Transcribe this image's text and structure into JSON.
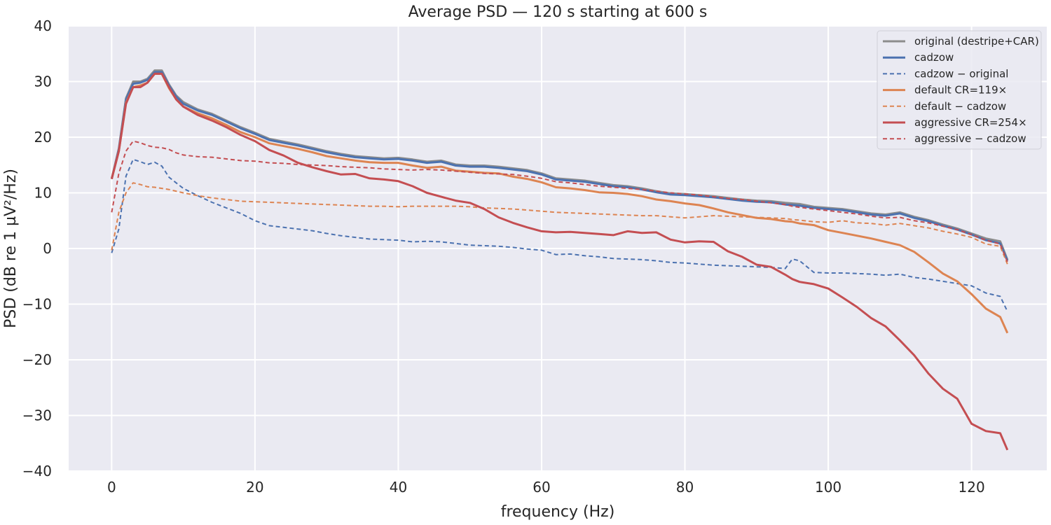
{
  "chart_data": {
    "type": "line",
    "title": "Average PSD — 120 s starting at 600 s",
    "xlabel": "frequency (Hz)",
    "ylabel": "PSD (dB re 1 µV²/Hz)",
    "xlim": [
      -6,
      130.5
    ],
    "ylim": [
      -40,
      40
    ],
    "xticks": [
      0,
      20,
      40,
      60,
      80,
      100,
      120
    ],
    "yticks": [
      -40,
      -30,
      -20,
      -10,
      0,
      10,
      20,
      30,
      40
    ],
    "xtick_labels": [
      "0",
      "20",
      "40",
      "60",
      "80",
      "100",
      "120"
    ],
    "ytick_labels": [
      "−40",
      "−30",
      "−20",
      "−10",
      "0",
      "10",
      "20",
      "30",
      "40"
    ],
    "grid": true,
    "legend_position": "top-right",
    "background": "#eaeaf2",
    "x": [
      0,
      1,
      2,
      3,
      4,
      5,
      6,
      7,
      8,
      9,
      10,
      12,
      14,
      16,
      18,
      20,
      22,
      24,
      26,
      28,
      30,
      32,
      34,
      36,
      38,
      40,
      42,
      44,
      46,
      48,
      50,
      52,
      54,
      56,
      58,
      60,
      62,
      64,
      66,
      68,
      70,
      72,
      74,
      76,
      78,
      80,
      82,
      84,
      86,
      88,
      90,
      92,
      94,
      95,
      96,
      98,
      100,
      102,
      104,
      106,
      108,
      110,
      112,
      114,
      116,
      118,
      120,
      122,
      124,
      125
    ],
    "series": [
      {
        "name": "original (destripe+CAR)",
        "color": "#8c8c8c",
        "dashed": false,
        "values": [
          12.5,
          18,
          27,
          30,
          30,
          30.5,
          32,
          32,
          29.5,
          27.5,
          26.3,
          25,
          24.2,
          23,
          21.8,
          20.8,
          19.7,
          19.2,
          18.7,
          18.1,
          17.5,
          17,
          16.6,
          16.4,
          16.2,
          16.3,
          16,
          15.6,
          15.8,
          15.1,
          14.9,
          14.9,
          14.7,
          14.4,
          14.1,
          13.5,
          12.6,
          12.4,
          12.2,
          11.8,
          11.4,
          11.2,
          10.8,
          10.3,
          9.9,
          9.8,
          9.6,
          9.4,
          9.1,
          8.8,
          8.6,
          8.5,
          8.2,
          8.1,
          8.0,
          7.5,
          7.3,
          7.1,
          6.7,
          6.3,
          6.1,
          6.5,
          5.7,
          5.1,
          4.3,
          3.6,
          2.7,
          1.8,
          1.3,
          -2.0
        ]
      },
      {
        "name": "cadzow",
        "color": "#4c72b0",
        "dashed": false,
        "values": [
          12.5,
          17.8,
          26.8,
          29.6,
          29.8,
          30.3,
          31.7,
          31.7,
          29.3,
          27.3,
          26,
          24.8,
          24,
          22.8,
          21.6,
          20.6,
          19.5,
          19,
          18.5,
          17.9,
          17.3,
          16.8,
          16.4,
          16.2,
          16.0,
          16.1,
          15.8,
          15.4,
          15.6,
          14.9,
          14.7,
          14.7,
          14.5,
          14.2,
          13.9,
          13.3,
          12.4,
          12.2,
          12.0,
          11.6,
          11.2,
          11.0,
          10.6,
          10.1,
          9.7,
          9.6,
          9.4,
          9.2,
          8.9,
          8.6,
          8.4,
          8.3,
          7.9,
          7.8,
          7.7,
          7.3,
          7.1,
          6.9,
          6.5,
          6.1,
          5.9,
          6.3,
          5.5,
          4.9,
          4.1,
          3.4,
          2.5,
          1.5,
          0.9,
          -2.2
        ]
      },
      {
        "name": "cadzow − original",
        "color": "#4c72b0",
        "dashed": true,
        "values": [
          -0.8,
          3.5,
          13,
          16,
          15.6,
          15.1,
          15.5,
          14.8,
          12.8,
          11.8,
          10.8,
          9.5,
          8.3,
          7.3,
          6.3,
          5.0,
          4.1,
          3.8,
          3.5,
          3.2,
          2.7,
          2.3,
          2.0,
          1.7,
          1.6,
          1.5,
          1.2,
          1.3,
          1.2,
          0.9,
          0.6,
          0.5,
          0.4,
          0.2,
          -0.1,
          -0.3,
          -1.1,
          -1.0,
          -1.3,
          -1.5,
          -1.8,
          -1.9,
          -2.0,
          -2.2,
          -2.5,
          -2.6,
          -2.8,
          -3.0,
          -3.1,
          -3.2,
          -3.3,
          -3.4,
          -3.6,
          -1.9,
          -2.2,
          -4.3,
          -4.4,
          -4.4,
          -4.5,
          -4.6,
          -4.8,
          -4.6,
          -5.2,
          -5.5,
          -5.9,
          -6.3,
          -6.7,
          -8.0,
          -8.6,
          -11.3
        ]
      },
      {
        "name": "default CR=119×",
        "color": "#dd8452",
        "dashed": false,
        "values": [
          12.5,
          17.5,
          26.2,
          29.0,
          29.3,
          29.8,
          31.4,
          31.4,
          28.8,
          26.8,
          25.5,
          24.3,
          23.4,
          22.2,
          20.9,
          20.0,
          18.9,
          18.4,
          17.9,
          17.3,
          16.6,
          16.2,
          15.8,
          15.5,
          15.4,
          15.4,
          14.9,
          14.5,
          14.7,
          14.0,
          13.8,
          13.6,
          13.5,
          12.9,
          12.5,
          11.9,
          11.0,
          10.8,
          10.5,
          10.1,
          10.0,
          9.8,
          9.4,
          8.8,
          8.5,
          8.1,
          7.8,
          7.2,
          6.5,
          6.0,
          5.5,
          5.3,
          4.9,
          4.8,
          4.5,
          4.2,
          3.3,
          2.8,
          2.3,
          1.8,
          1.2,
          0.6,
          -0.6,
          -2.5,
          -4.5,
          -5.9,
          -8.2,
          -10.8,
          -12.3,
          -15.2
        ]
      },
      {
        "name": "default − cadzow",
        "color": "#dd8452",
        "dashed": true,
        "values": [
          -0.3,
          6.5,
          10.0,
          11.8,
          11.5,
          11.1,
          11.0,
          10.8,
          10.6,
          10.3,
          10.0,
          9.5,
          9.1,
          8.8,
          8.5,
          8.4,
          8.3,
          8.2,
          8.1,
          8.0,
          7.9,
          7.8,
          7.7,
          7.6,
          7.6,
          7.5,
          7.6,
          7.6,
          7.6,
          7.6,
          7.5,
          7.3,
          7.2,
          7.1,
          6.9,
          6.7,
          6.5,
          6.4,
          6.3,
          6.2,
          6.1,
          6.0,
          5.9,
          5.9,
          5.7,
          5.5,
          5.7,
          5.9,
          5.8,
          5.7,
          5.6,
          5.5,
          5.4,
          5.2,
          5.1,
          4.8,
          4.7,
          5.0,
          4.6,
          4.5,
          4.2,
          4.5,
          4.1,
          3.7,
          3.1,
          2.6,
          2.0,
          0.8,
          0.4,
          -2.8
        ]
      },
      {
        "name": "aggressive CR=254×",
        "color": "#c44e52",
        "dashed": false,
        "values": [
          12.5,
          17.5,
          26.0,
          29.0,
          29.0,
          29.8,
          31.4,
          31.4,
          29.0,
          26.8,
          25.5,
          24.0,
          23.0,
          21.8,
          20.4,
          19.3,
          17.7,
          16.7,
          15.4,
          14.6,
          13.9,
          13.3,
          13.4,
          12.6,
          12.4,
          12.1,
          11.2,
          10.0,
          9.3,
          8.6,
          8.2,
          7.1,
          5.6,
          4.6,
          3.8,
          3.1,
          2.9,
          3.0,
          2.8,
          2.6,
          2.4,
          3.1,
          2.8,
          2.9,
          1.6,
          1.1,
          1.3,
          1.2,
          -0.5,
          -1.5,
          -2.9,
          -3.3,
          -4.7,
          -5.5,
          -6.0,
          -6.4,
          -7.2,
          -8.8,
          -10.5,
          -12.5,
          -14.0,
          -16.5,
          -19.2,
          -22.5,
          -25.2,
          -27.0,
          -31.5,
          -32.8,
          -33.2,
          -36.2
        ]
      },
      {
        "name": "aggressive − cadzow",
        "color": "#c44e52",
        "dashed": true,
        "values": [
          6.5,
          13.5,
          17.5,
          19.3,
          19.0,
          18.5,
          18.2,
          18.1,
          17.8,
          17.2,
          16.8,
          16.5,
          16.4,
          16.1,
          15.8,
          15.7,
          15.4,
          15.3,
          15.1,
          15.0,
          14.9,
          14.7,
          14.6,
          14.5,
          14.3,
          14.2,
          14.1,
          14.2,
          14.1,
          13.9,
          13.7,
          13.5,
          13.4,
          13.3,
          13.0,
          12.6,
          12.0,
          11.8,
          11.5,
          11.2,
          11.0,
          10.8,
          10.6,
          10.3,
          10.0,
          9.8,
          9.6,
          9.3,
          9.0,
          8.8,
          8.5,
          8.2,
          7.9,
          7.6,
          7.4,
          7.1,
          6.8,
          6.5,
          6.2,
          5.8,
          5.5,
          5.6,
          5.0,
          4.6,
          4.0,
          3.4,
          2.5,
          1.5,
          0.8,
          -2.4
        ]
      }
    ]
  }
}
